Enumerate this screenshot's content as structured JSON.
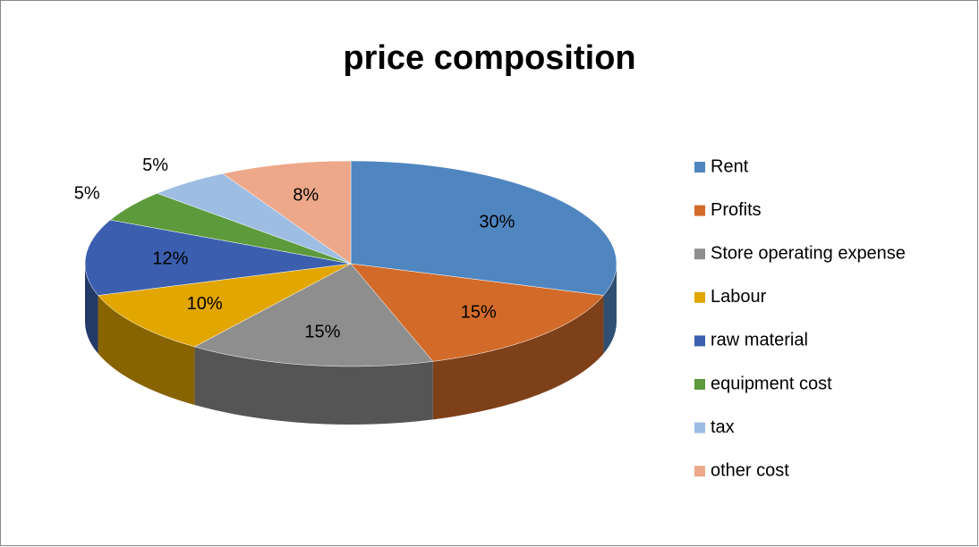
{
  "chart_data": {
    "type": "pie",
    "title": "price composition",
    "categories": [
      "Rent",
      "Profits",
      "Store operating expense",
      "Labour",
      "raw material",
      "equipment cost",
      "tax",
      "other cost"
    ],
    "values": [
      30,
      15,
      15,
      10,
      12,
      5,
      5,
      8
    ],
    "value_labels": [
      "30%",
      "15%",
      "15%",
      "10%",
      "12%",
      "5%",
      "5%",
      "8%"
    ],
    "colors": [
      "#4f86c0",
      "#d26b2a",
      "#8e8e8e",
      "#e2a600",
      "#3b5fae",
      "#5c9a3c",
      "#9ebde3",
      "#eda88a"
    ],
    "legend": "right"
  }
}
